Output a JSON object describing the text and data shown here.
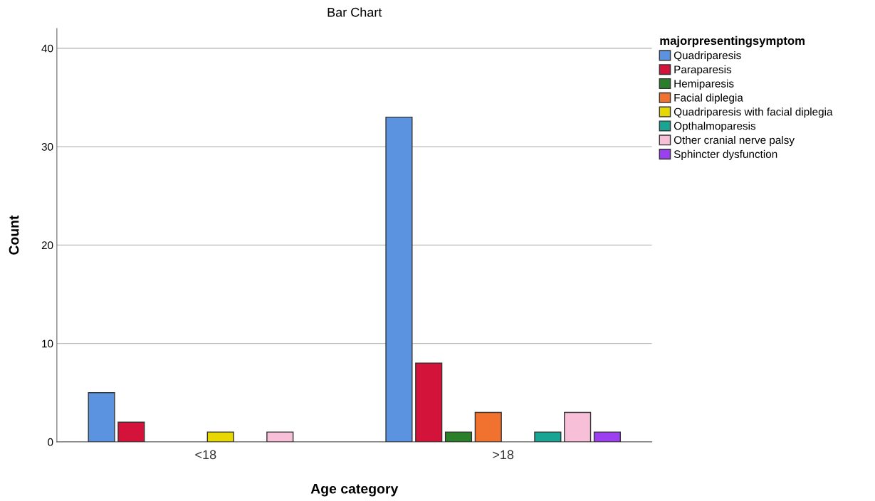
{
  "chart_data": {
    "type": "bar",
    "title": "Bar Chart",
    "xlabel": "Age category",
    "ylabel": "Count",
    "legend_title": "majorpresentingsymptom",
    "categories": [
      "<18",
      ">18"
    ],
    "series": [
      {
        "name": "Quadriparesis",
        "color": "#5b93e0",
        "values": [
          5,
          33
        ]
      },
      {
        "name": "Paraparesis",
        "color": "#d3133a",
        "values": [
          2,
          8
        ]
      },
      {
        "name": "Hemiparesis",
        "color": "#2a7f2a",
        "values": [
          null,
          1
        ]
      },
      {
        "name": "Facial diplegia",
        "color": "#f0722e",
        "values": [
          null,
          3
        ]
      },
      {
        "name": "Quadriparesis with facial diplegia",
        "color": "#e6d800",
        "values": [
          1,
          null
        ]
      },
      {
        "name": "Opthalmoparesis",
        "color": "#19a594",
        "values": [
          null,
          1
        ]
      },
      {
        "name": "Other cranial nerve palsy",
        "color": "#f8bfd8",
        "values": [
          1,
          3
        ]
      },
      {
        "name": "Sphincter dysfunction",
        "color": "#9c3ff0",
        "values": [
          null,
          1
        ]
      }
    ],
    "ylim": [
      0,
      42
    ],
    "yticks": [
      0,
      10,
      20,
      30,
      40
    ],
    "grid": "y",
    "legend": "top right"
  }
}
